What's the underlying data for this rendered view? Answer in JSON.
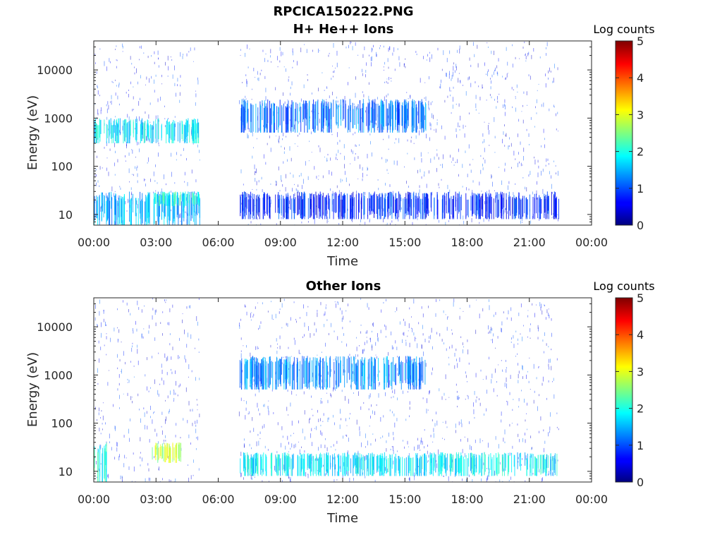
{
  "figure": {
    "filename_title": "RPCICA150222.PNG"
  },
  "colors": {
    "axis": "#262626",
    "colormap": "jet"
  },
  "chart_data": [
    {
      "type": "heatmap",
      "title": "H+ He++ Ions",
      "xlabel": "Time",
      "ylabel": "Energy (eV)",
      "x_ticks": [
        "00:00",
        "03:00",
        "06:00",
        "09:00",
        "12:00",
        "15:00",
        "18:00",
        "21:00",
        "00:00"
      ],
      "x_range_hours": [
        0,
        24
      ],
      "y_scale": "log",
      "y_ticks": [
        "10",
        "100",
        "1000",
        "10000"
      ],
      "y_range_eV": [
        6,
        40000
      ],
      "colorbar": {
        "label": "Log counts",
        "range": [
          0,
          5
        ],
        "ticks": [
          "0",
          "1",
          "2",
          "3",
          "4",
          "5"
        ]
      },
      "data_gaps_hours": [
        [
          5.1,
          7.0
        ],
        [
          22.4,
          24.0
        ]
      ],
      "features": [
        {
          "time_hours": [
            0.0,
            5.1
          ],
          "energy_eV": [
            6,
            30
          ],
          "log_counts": 1.5
        },
        {
          "time_hours": [
            2.8,
            5.1
          ],
          "energy_eV": [
            15,
            30
          ],
          "log_counts": 2.0
        },
        {
          "time_hours": [
            0.0,
            5.1
          ],
          "energy_eV": [
            300,
            1000
          ],
          "log_counts": 1.8
        },
        {
          "time_hours": [
            7.0,
            22.4
          ],
          "energy_eV": [
            8,
            30
          ],
          "log_counts": 0.8
        },
        {
          "time_hours": [
            7.0,
            16.0
          ],
          "energy_eV": [
            500,
            2500
          ],
          "log_counts": 1.2
        }
      ]
    },
    {
      "type": "heatmap",
      "title": "Other Ions",
      "xlabel": "Time",
      "ylabel": "Energy (eV)",
      "x_ticks": [
        "00:00",
        "03:00",
        "06:00",
        "09:00",
        "12:00",
        "15:00",
        "18:00",
        "21:00",
        "00:00"
      ],
      "x_range_hours": [
        0,
        24
      ],
      "y_scale": "log",
      "y_ticks": [
        "10",
        "100",
        "1000",
        "10000"
      ],
      "y_range_eV": [
        6,
        40000
      ],
      "colorbar": {
        "label": "Log counts",
        "range": [
          0,
          5
        ],
        "ticks": [
          "0",
          "1",
          "2",
          "3",
          "4",
          "5"
        ]
      },
      "data_gaps_hours": [
        [
          5.1,
          7.0
        ],
        [
          22.4,
          24.0
        ]
      ],
      "features": [
        {
          "time_hours": [
            0.0,
            0.6
          ],
          "energy_eV": [
            6,
            40
          ],
          "log_counts": 2.0
        },
        {
          "time_hours": [
            2.8,
            4.2
          ],
          "energy_eV": [
            15,
            40
          ],
          "log_counts": 2.8
        },
        {
          "time_hours": [
            7.0,
            22.4
          ],
          "energy_eV": [
            8,
            25
          ],
          "log_counts": 1.8
        },
        {
          "time_hours": [
            7.0,
            16.0
          ],
          "energy_eV": [
            500,
            2500
          ],
          "log_counts": 1.3
        }
      ]
    }
  ]
}
